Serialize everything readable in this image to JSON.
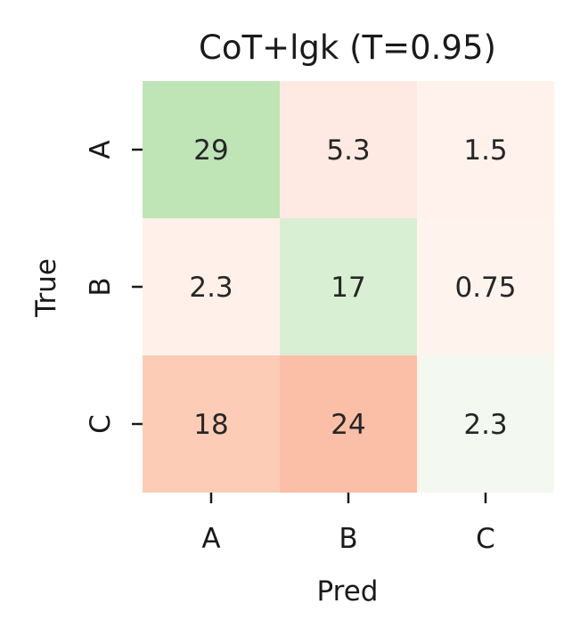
{
  "chart_data": {
    "type": "heatmap",
    "title": "CoT+lgk (T=0.95)",
    "xlabel": "Pred",
    "ylabel": "True",
    "x_categories": [
      "A",
      "B",
      "C"
    ],
    "y_categories": [
      "A",
      "B",
      "C"
    ],
    "cells": [
      [
        {
          "label": "29",
          "color": "#bfe4b6"
        },
        {
          "label": "5.3",
          "color": "#feeae2"
        },
        {
          "label": "1.5",
          "color": "#fff2ed"
        }
      ],
      [
        {
          "label": "2.3",
          "color": "#fff0e9"
        },
        {
          "label": "17",
          "color": "#d9efd3"
        },
        {
          "label": "0.75",
          "color": "#fff3ee"
        }
      ],
      [
        {
          "label": "18",
          "color": "#fcccb6"
        },
        {
          "label": "24",
          "color": "#fbbea6"
        },
        {
          "label": "2.3",
          "color": "#f3f9f0"
        }
      ]
    ],
    "colorbar": false,
    "grid": false
  }
}
